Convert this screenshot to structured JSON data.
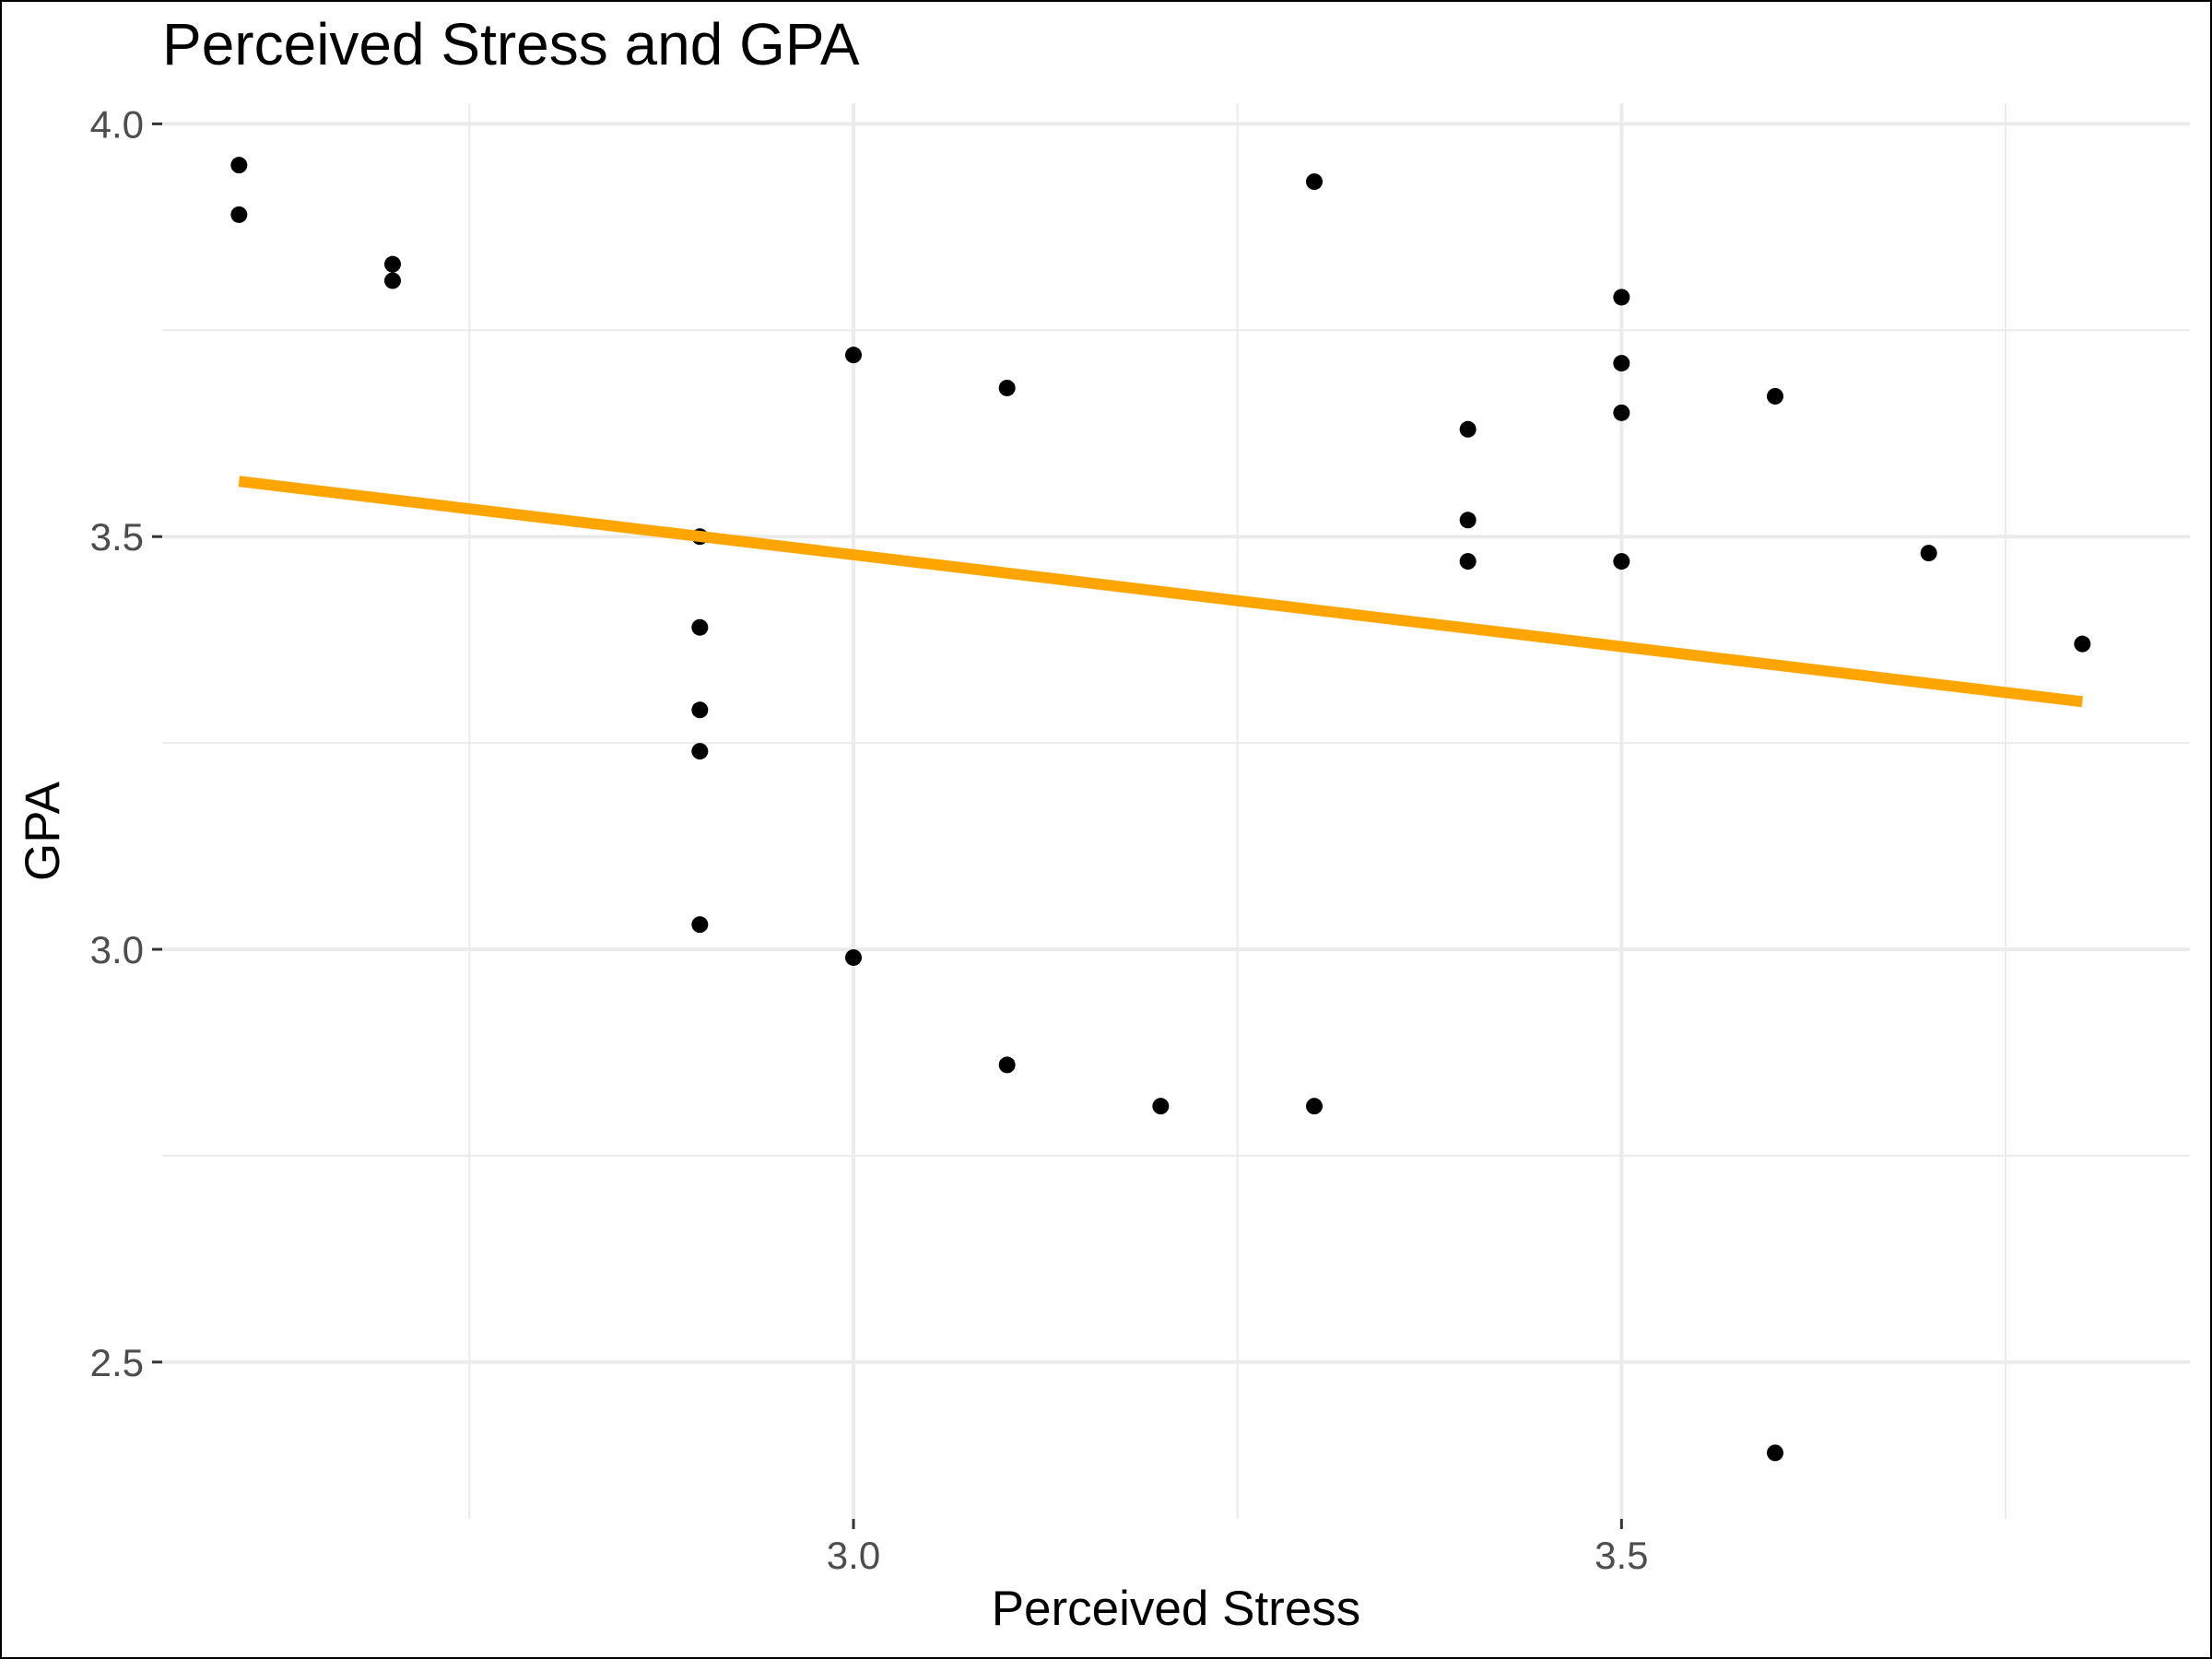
{
  "chart_data": {
    "type": "scatter",
    "title": "Perceived Stress and GPA",
    "xlabel": "Perceived Stress",
    "ylabel": "GPA",
    "xlim": [
      2.55,
      3.87
    ],
    "ylim": [
      2.31,
      4.025
    ],
    "x_ticks": [
      {
        "value": 3.0,
        "label": "3.0"
      },
      {
        "value": 3.5,
        "label": "3.5"
      }
    ],
    "y_ticks": [
      {
        "value": 2.5,
        "label": "2.5"
      },
      {
        "value": 3.0,
        "label": "3.0"
      },
      {
        "value": 3.5,
        "label": "3.5"
      },
      {
        "value": 4.0,
        "label": "4.0"
      }
    ],
    "x_minor_grid": [
      2.75,
      3.25,
      3.75
    ],
    "y_minor_grid": [
      2.75,
      3.25,
      3.75
    ],
    "grid": true,
    "point_color": "#000000",
    "points": [
      {
        "x": 2.6,
        "y": 3.95
      },
      {
        "x": 2.6,
        "y": 3.89
      },
      {
        "x": 2.7,
        "y": 3.83
      },
      {
        "x": 2.7,
        "y": 3.81
      },
      {
        "x": 2.9,
        "y": 3.5
      },
      {
        "x": 2.9,
        "y": 3.39
      },
      {
        "x": 2.9,
        "y": 3.29
      },
      {
        "x": 2.9,
        "y": 3.24
      },
      {
        "x": 2.9,
        "y": 3.03
      },
      {
        "x": 3.0,
        "y": 3.72
      },
      {
        "x": 3.0,
        "y": 2.99
      },
      {
        "x": 3.1,
        "y": 3.68
      },
      {
        "x": 3.1,
        "y": 2.86
      },
      {
        "x": 3.2,
        "y": 2.81
      },
      {
        "x": 3.3,
        "y": 3.93
      },
      {
        "x": 3.3,
        "y": 2.81
      },
      {
        "x": 3.4,
        "y": 3.63
      },
      {
        "x": 3.4,
        "y": 3.52
      },
      {
        "x": 3.4,
        "y": 3.47
      },
      {
        "x": 3.5,
        "y": 3.79
      },
      {
        "x": 3.5,
        "y": 3.71
      },
      {
        "x": 3.5,
        "y": 3.65
      },
      {
        "x": 3.5,
        "y": 3.47
      },
      {
        "x": 3.6,
        "y": 3.67
      },
      {
        "x": 3.6,
        "y": 2.39
      },
      {
        "x": 3.7,
        "y": 3.48
      },
      {
        "x": 3.8,
        "y": 3.37
      }
    ],
    "trend_line": {
      "color": "#FFA500",
      "x": [
        2.6,
        3.8
      ],
      "y": [
        3.567,
        3.3
      ]
    }
  }
}
